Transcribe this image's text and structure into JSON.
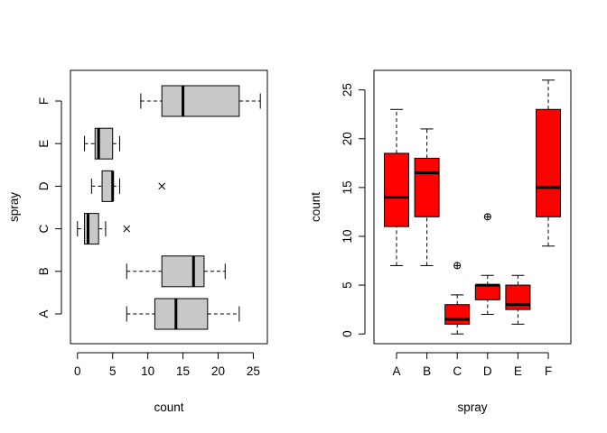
{
  "chart_data": [
    {
      "type": "boxplot",
      "orientation": "horizontal",
      "xlabel": "count",
      "ylabel": "spray",
      "xlim": [
        -1,
        27
      ],
      "xticks": [
        0,
        5,
        10,
        15,
        20,
        25
      ],
      "box_color": "#c8c8c8",
      "outlier_symbol": "cross",
      "categories": [
        "A",
        "B",
        "C",
        "D",
        "E",
        "F"
      ],
      "boxes": [
        {
          "group": "A",
          "whisker_low": 7,
          "q1": 11,
          "median": 14,
          "q3": 18.5,
          "whisker_high": 23,
          "outliers": []
        },
        {
          "group": "B",
          "whisker_low": 7,
          "q1": 12,
          "median": 16.5,
          "q3": 18,
          "whisker_high": 21,
          "outliers": []
        },
        {
          "group": "C",
          "whisker_low": 0,
          "q1": 1,
          "median": 1.5,
          "q3": 3,
          "whisker_high": 4,
          "outliers": [
            7
          ]
        },
        {
          "group": "D",
          "whisker_low": 2,
          "q1": 3.5,
          "median": 5,
          "q3": 5,
          "whisker_high": 6,
          "outliers": [
            12
          ]
        },
        {
          "group": "E",
          "whisker_low": 1,
          "q1": 2.5,
          "median": 3,
          "q3": 5,
          "whisker_high": 6,
          "outliers": []
        },
        {
          "group": "F",
          "whisker_low": 9,
          "q1": 12,
          "median": 15,
          "q3": 23,
          "whisker_high": 26,
          "outliers": []
        }
      ]
    },
    {
      "type": "boxplot",
      "orientation": "vertical",
      "xlabel": "spray",
      "ylabel": "count",
      "ylim": [
        -1,
        27
      ],
      "yticks": [
        0,
        5,
        10,
        15,
        20,
        25
      ],
      "box_color": "#ff0000",
      "outlier_symbol": "circle-plus",
      "categories": [
        "A",
        "B",
        "C",
        "D",
        "E",
        "F"
      ],
      "boxes": [
        {
          "group": "A",
          "whisker_low": 7,
          "q1": 11,
          "median": 14,
          "q3": 18.5,
          "whisker_high": 23,
          "outliers": []
        },
        {
          "group": "B",
          "whisker_low": 7,
          "q1": 12,
          "median": 16.5,
          "q3": 18,
          "whisker_high": 21,
          "outliers": []
        },
        {
          "group": "C",
          "whisker_low": 0,
          "q1": 1,
          "median": 1.5,
          "q3": 3,
          "whisker_high": 4,
          "outliers": [
            7
          ]
        },
        {
          "group": "D",
          "whisker_low": 2,
          "q1": 3.5,
          "median": 5,
          "q3": 5,
          "whisker_high": 6,
          "outliers": [
            12
          ]
        },
        {
          "group": "E",
          "whisker_low": 1,
          "q1": 2.5,
          "median": 3,
          "q3": 5,
          "whisker_high": 6,
          "outliers": []
        },
        {
          "group": "F",
          "whisker_low": 9,
          "q1": 12,
          "median": 15,
          "q3": 23,
          "whisker_high": 26,
          "outliers": []
        }
      ]
    }
  ]
}
